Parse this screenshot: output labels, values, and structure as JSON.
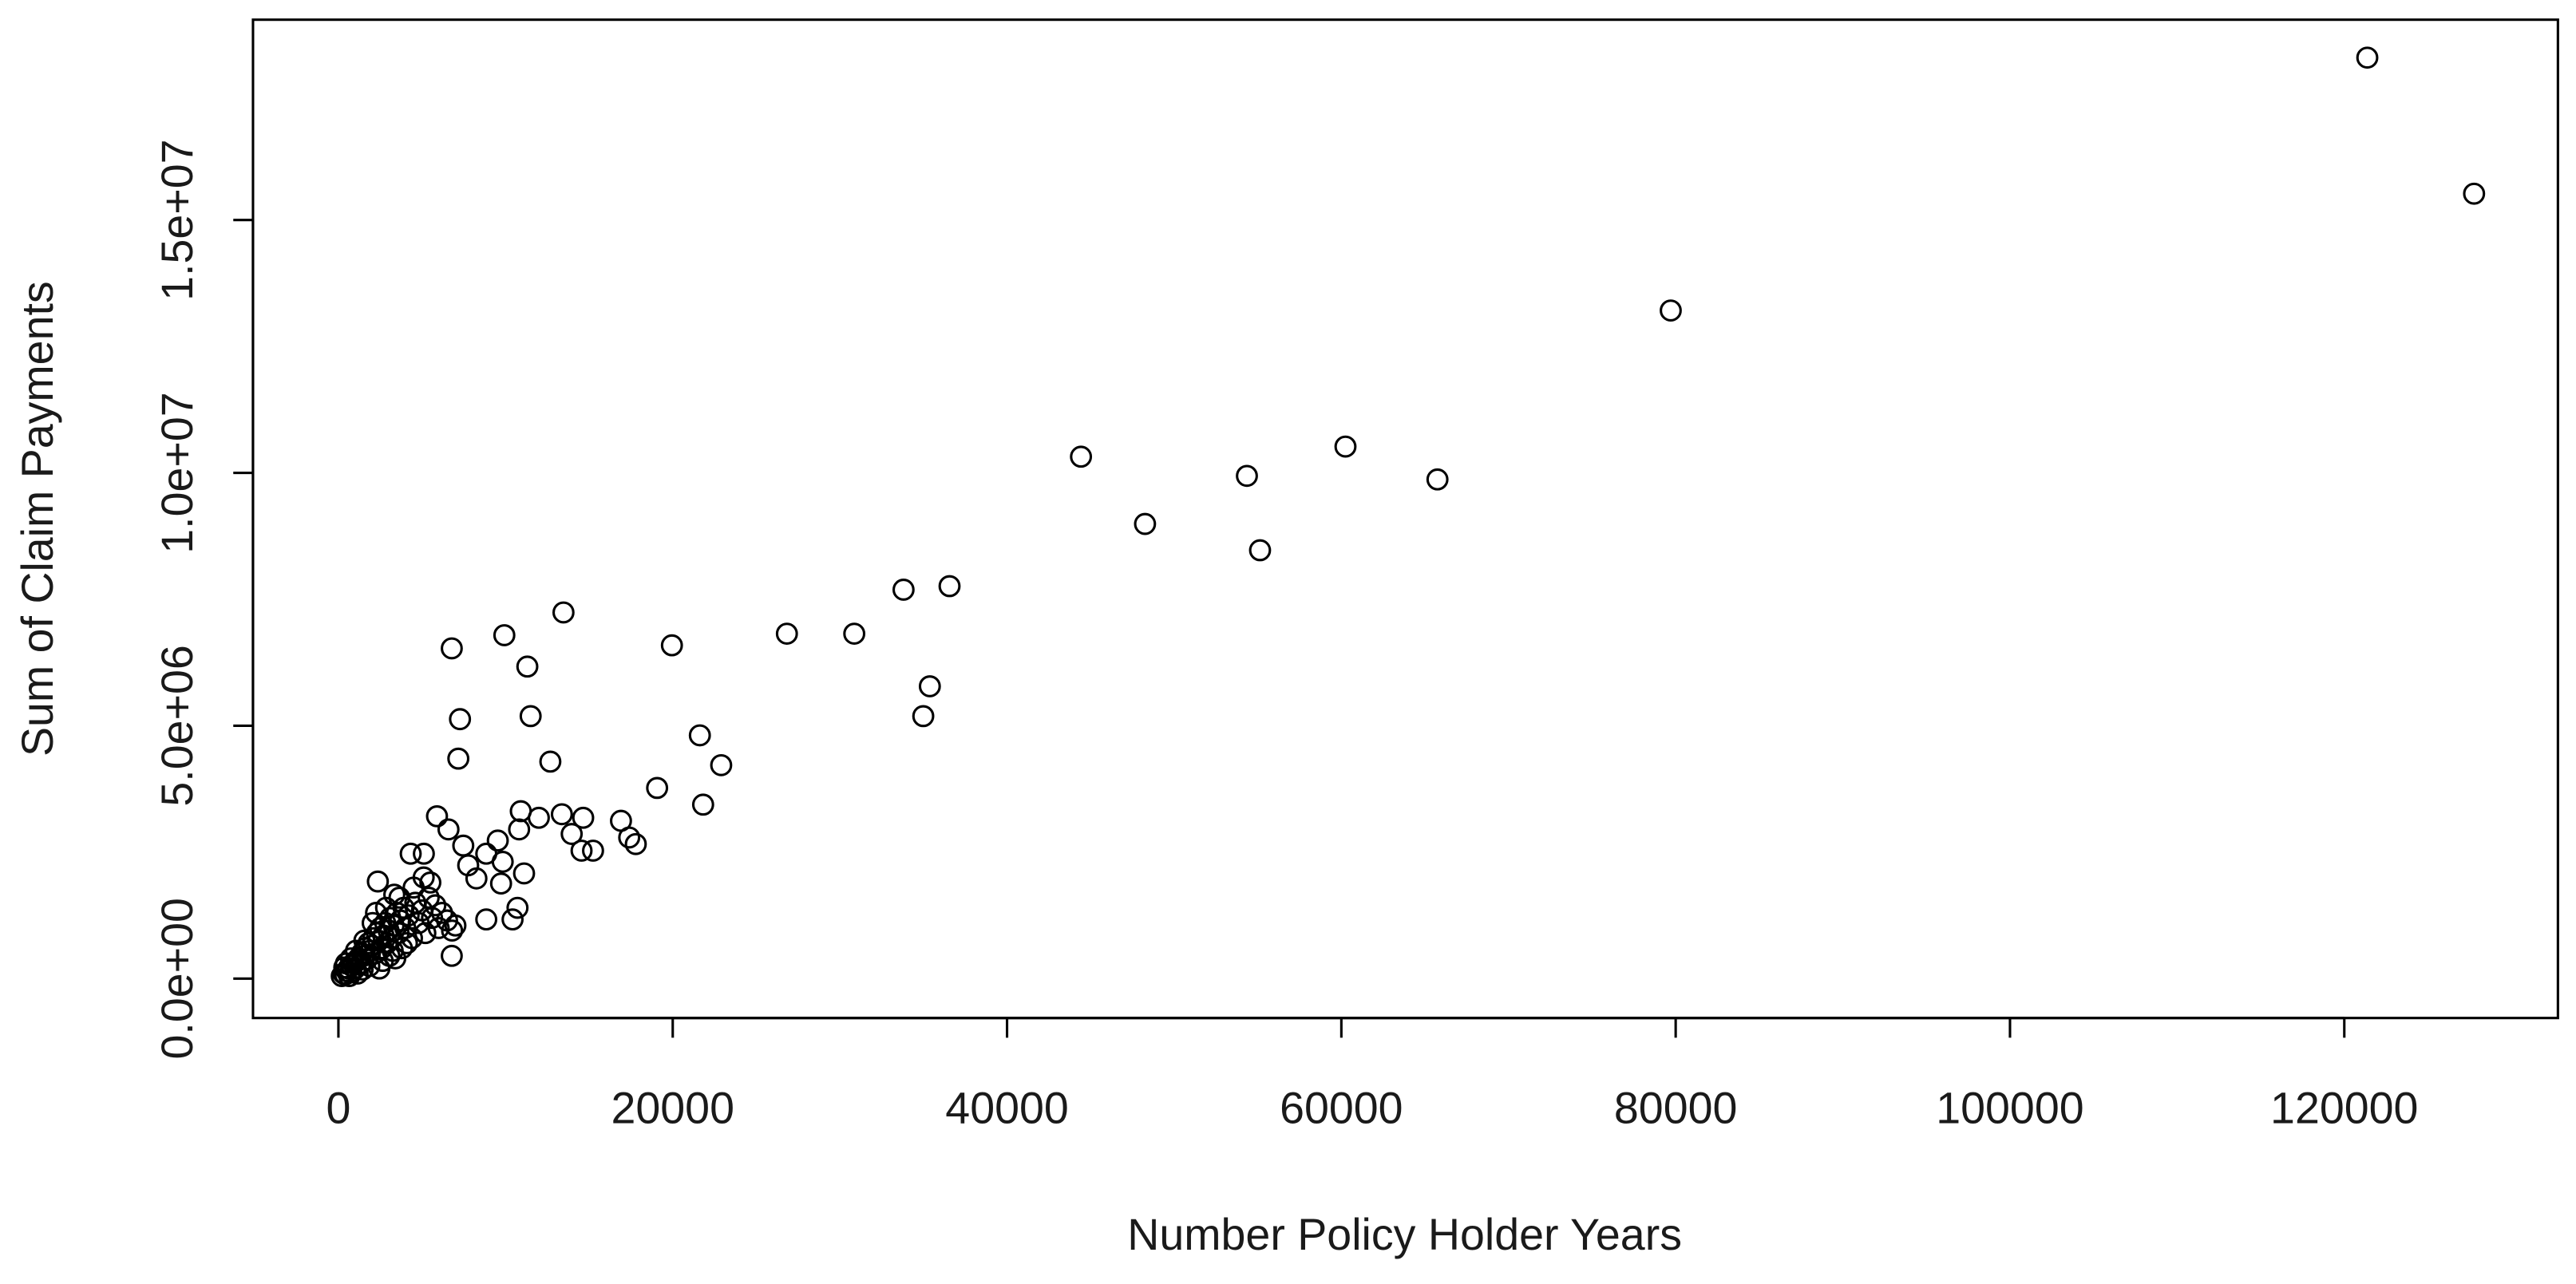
{
  "chart_data": {
    "type": "scatter",
    "xlabel": "Number Policy Holder Years",
    "ylabel": "Sum of Claim Payments",
    "color": "#000000",
    "xlim": [
      -5110,
      132780
    ],
    "ylim": [
      -779000,
      18960000
    ],
    "xticks": [
      0,
      20000,
      40000,
      60000,
      80000,
      100000,
      120000
    ],
    "yticks": [
      {
        "value": 0,
        "label": "0.0e+00"
      },
      {
        "value": 5000000,
        "label": "5.0e+06"
      },
      {
        "value": 10000000,
        "label": "1.0e+07"
      },
      {
        "value": 15000000,
        "label": "1.5e+07"
      }
    ],
    "x": [
      121376,
      127764,
      79705,
      44423,
      48255,
      54349,
      55135,
      60246,
      65749,
      33808,
      36560,
      35381,
      34988,
      30860,
      26830,
      19951,
      21622,
      22899,
      21818,
      19066,
      9926,
      13464,
      11302,
      6781,
      7273,
      11499,
      7174,
      12678,
      16904,
      17396,
      17789,
      14643,
      13366,
      13956,
      14545,
      15233,
      10909,
      11990,
      10811,
      11106,
      10418,
      10713,
      8845,
      6781,
      5897,
      6585,
      7469,
      9533,
      8845,
      9828,
      9730,
      8256,
      7764,
      5111,
      4324,
      2359,
      3342,
      200,
      300,
      400,
      500,
      600,
      700,
      800,
      900,
      1000,
      1100,
      1200,
      1300,
      1400,
      1500,
      1600,
      1700,
      1800,
      1900,
      2000,
      2100,
      2200,
      2300,
      2400,
      2500,
      2600,
      2700,
      2800,
      2900,
      3000,
      3100,
      3200,
      3300,
      3400,
      3500,
      3600,
      3700,
      3800,
      3900,
      4000,
      4200,
      4400,
      4600,
      4800,
      5000,
      5200,
      5400,
      5600,
      5800,
      6000,
      6200,
      6500,
      6800,
      7000,
      450,
      650,
      1050,
      1450,
      1850,
      2250,
      2650,
      3050,
      350,
      750,
      1150,
      1550,
      2050,
      2450,
      2850,
      3250,
      3650,
      4100,
      4500,
      5100,
      5500
    ],
    "y": [
      18210000,
      15520000,
      13210000,
      10320000,
      8990000,
      9940000,
      8470000,
      10520000,
      9870000,
      7690000,
      7760000,
      5780000,
      5190000,
      6820000,
      6820000,
      6590000,
      4810000,
      4220000,
      3440000,
      3770000,
      6790000,
      7240000,
      6170000,
      6530000,
      5130000,
      5190000,
      4350000,
      4290000,
      3120000,
      2790000,
      2660000,
      3180000,
      3250000,
      2860000,
      2530000,
      2530000,
      3310000,
      3180000,
      2950000,
      2080000,
      1170000,
      1400000,
      1170000,
      450000,
      3210000,
      2950000,
      2630000,
      2730000,
      2470000,
      2310000,
      1880000,
      1980000,
      2240000,
      2470000,
      2470000,
      1920000,
      1660000,
      50000,
      100000,
      80000,
      150000,
      200000,
      120000,
      250000,
      300000,
      200000,
      350000,
      400000,
      280000,
      500000,
      450000,
      600000,
      380000,
      700000,
      550000,
      650000,
      800000,
      500000,
      900000,
      750000,
      1000000,
      600000,
      850000,
      1100000,
      700000,
      950000,
      1200000,
      800000,
      1050000,
      400000,
      1300000,
      900000,
      1150000,
      600000,
      1400000,
      1000000,
      1250000,
      800000,
      1500000,
      1100000,
      1350000,
      900000,
      1600000,
      1200000,
      1450000,
      1000000,
      1300000,
      1150000,
      950000,
      1050000,
      300000,
      50000,
      550000,
      180000,
      250000,
      1300000,
      350000,
      450000,
      220000,
      400000,
      100000,
      750000,
      1100000,
      200000,
      1400000,
      550000,
      1600000,
      700000,
      1800000,
      2000000,
      1900000
    ]
  }
}
